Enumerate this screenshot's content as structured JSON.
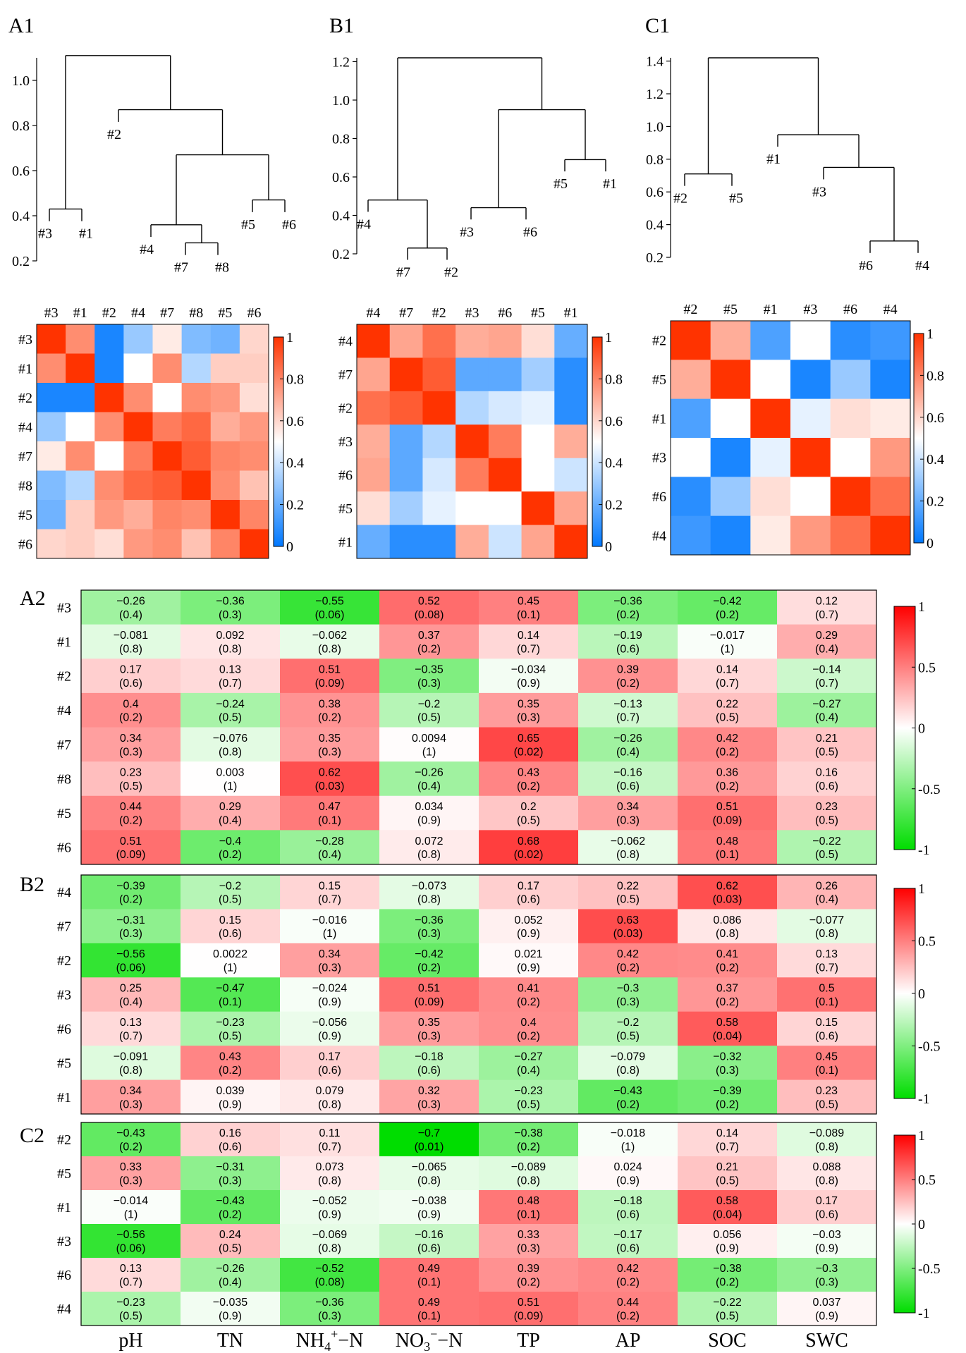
{
  "dendrograms": [
    {
      "panel": "A1",
      "yticks": [
        "0.2",
        "0.4",
        "0.6",
        "0.8",
        "1.0"
      ],
      "ytick_values": [
        0.2,
        0.4,
        0.6,
        0.8,
        1.0
      ],
      "ylim": [
        0.2,
        1.1
      ],
      "order": [
        "#3",
        "#1",
        "#2",
        "#4",
        "#7",
        "#8",
        "#5",
        "#6"
      ],
      "merges": [
        {
          "a": "#7",
          "b": "#8",
          "h": 0.28
        },
        {
          "a": "#3",
          "b": "#1",
          "h": 0.43
        },
        {
          "a": "#5",
          "b": "#6",
          "h": 0.47
        },
        {
          "a": "#4",
          "b": "#7+#8",
          "h": 0.36
        },
        {
          "a": "#4+#7+#8",
          "b": "#5+#6",
          "h": 0.67
        },
        {
          "a": "#2",
          "b": "rest",
          "h": 0.87
        },
        {
          "a": "#3+#1",
          "b": "#2+rest",
          "h": 1.11
        }
      ]
    },
    {
      "panel": "B1",
      "yticks": [
        "0.2",
        "0.4",
        "0.6",
        "0.8",
        "1.0",
        "1.2"
      ],
      "ytick_values": [
        0.2,
        0.4,
        0.6,
        0.8,
        1.0,
        1.2
      ],
      "ylim": [
        0.2,
        1.22
      ],
      "order": [
        "#4",
        "#7",
        "#2",
        "#3",
        "#6",
        "#5",
        "#1"
      ],
      "merges": [
        {
          "a": "#7",
          "b": "#2",
          "h": 0.23
        },
        {
          "a": "#3",
          "b": "#6",
          "h": 0.44
        },
        {
          "a": "#4",
          "b": "#7+#2",
          "h": 0.48
        },
        {
          "a": "#5",
          "b": "#1",
          "h": 0.69
        },
        {
          "a": "#3+#6",
          "b": "#5+#1",
          "h": 0.95
        },
        {
          "a": "#4+#7+#2",
          "b": "rest",
          "h": 1.22
        }
      ]
    },
    {
      "panel": "C1",
      "yticks": [
        "0.2",
        "0.4",
        "0.6",
        "0.8",
        "1.0",
        "1.2",
        "1.4"
      ],
      "ytick_values": [
        0.2,
        0.4,
        0.6,
        0.8,
        1.0,
        1.2,
        1.4
      ],
      "ylim": [
        0.2,
        1.42
      ],
      "order": [
        "#2",
        "#5",
        "#1",
        "#3",
        "#6",
        "#4"
      ],
      "merges": [
        {
          "a": "#6",
          "b": "#4",
          "h": 0.3
        },
        {
          "a": "#2",
          "b": "#5",
          "h": 0.71
        },
        {
          "a": "#3",
          "b": "#6+#4",
          "h": 0.75
        },
        {
          "a": "#1",
          "b": "#3+#6+#4",
          "h": 0.95
        },
        {
          "a": "#2+#5",
          "b": "rest",
          "h": 1.42
        }
      ]
    }
  ],
  "similarity_colorbar": {
    "ticks": [
      "0",
      "0.2",
      "0.4",
      "0.6",
      "0.8",
      "1"
    ],
    "tick_values": [
      0,
      0.2,
      0.4,
      0.6,
      0.8,
      1
    ],
    "colors": [
      "#0078ff",
      "#ffffff",
      "#ff3300"
    ]
  },
  "correlation_colorbar": {
    "ticks": [
      "-1",
      "-0.5",
      "0",
      "0.5",
      "1"
    ],
    "tick_values": [
      -1,
      -0.5,
      0,
      0.5,
      1
    ],
    "colors": [
      "#00dd00",
      "#ffffff",
      "#ff0000"
    ]
  },
  "chart_data": [
    {
      "type": "heatmap",
      "panel": "A1",
      "labels": [
        "#3",
        "#1",
        "#2",
        "#4",
        "#7",
        "#8",
        "#5",
        "#6"
      ],
      "matrix": [
        [
          1.0,
          0.78,
          0.05,
          0.3,
          0.55,
          0.25,
          0.22,
          0.6
        ],
        [
          0.78,
          1.0,
          0.05,
          0.5,
          0.78,
          0.35,
          0.62,
          0.62
        ],
        [
          0.05,
          0.05,
          1.0,
          0.78,
          0.5,
          0.78,
          0.75,
          0.58
        ],
        [
          0.3,
          0.5,
          0.78,
          1.0,
          0.82,
          0.87,
          0.7,
          0.75
        ],
        [
          0.55,
          0.78,
          0.5,
          0.82,
          1.0,
          0.9,
          0.8,
          0.78
        ],
        [
          0.25,
          0.35,
          0.78,
          0.87,
          0.9,
          1.0,
          0.78,
          0.65
        ],
        [
          0.22,
          0.62,
          0.75,
          0.7,
          0.8,
          0.78,
          1.0,
          0.8
        ],
        [
          0.6,
          0.62,
          0.58,
          0.75,
          0.78,
          0.65,
          0.8,
          1.0
        ]
      ]
    },
    {
      "type": "heatmap",
      "panel": "B1",
      "labels": [
        "#4",
        "#7",
        "#2",
        "#3",
        "#6",
        "#5",
        "#1"
      ],
      "matrix": [
        [
          1.0,
          0.72,
          0.85,
          0.7,
          0.72,
          0.58,
          0.2
        ],
        [
          0.72,
          1.0,
          0.9,
          0.18,
          0.18,
          0.32,
          0.08
        ],
        [
          0.85,
          0.9,
          1.0,
          0.35,
          0.42,
          0.45,
          0.08
        ],
        [
          0.7,
          0.18,
          0.35,
          1.0,
          0.82,
          0.5,
          0.7
        ],
        [
          0.72,
          0.18,
          0.42,
          0.82,
          1.0,
          0.5,
          0.4
        ],
        [
          0.58,
          0.32,
          0.45,
          0.5,
          0.5,
          1.0,
          0.72
        ],
        [
          0.2,
          0.08,
          0.08,
          0.7,
          0.4,
          0.72,
          1.0
        ]
      ]
    },
    {
      "type": "heatmap",
      "panel": "C1",
      "labels": [
        "#2",
        "#5",
        "#1",
        "#3",
        "#6",
        "#4"
      ],
      "matrix": [
        [
          1.0,
          0.7,
          0.15,
          0.5,
          0.08,
          0.12
        ],
        [
          0.7,
          1.0,
          0.5,
          0.05,
          0.3,
          0.05
        ],
        [
          0.15,
          0.5,
          1.0,
          0.45,
          0.58,
          0.55
        ],
        [
          0.5,
          0.05,
          0.45,
          1.0,
          0.5,
          0.75
        ],
        [
          0.08,
          0.3,
          0.58,
          0.5,
          1.0,
          0.85
        ],
        [
          0.12,
          0.05,
          0.55,
          0.75,
          0.85,
          1.0
        ]
      ]
    },
    {
      "type": "heatmap",
      "panel": "A2",
      "rows": [
        "#3",
        "#1",
        "#2",
        "#4",
        "#7",
        "#8",
        "#5",
        "#6"
      ],
      "columns": [
        "pH",
        "TN",
        "NH4+-N",
        "NO3--N",
        "TP",
        "AP",
        "SOC",
        "SWC"
      ],
      "r": [
        [
          -0.26,
          -0.36,
          -0.55,
          0.52,
          0.45,
          -0.36,
          -0.42,
          0.12
        ],
        [
          -0.081,
          0.092,
          -0.062,
          0.37,
          0.14,
          -0.19,
          -0.017,
          0.29
        ],
        [
          0.17,
          0.13,
          0.51,
          -0.35,
          -0.034,
          0.39,
          0.14,
          -0.14
        ],
        [
          0.4,
          -0.24,
          0.38,
          -0.2,
          0.35,
          -0.13,
          0.22,
          -0.27
        ],
        [
          0.34,
          -0.076,
          0.35,
          0.0094,
          0.65,
          -0.26,
          0.42,
          0.21
        ],
        [
          0.23,
          0.003,
          0.62,
          -0.26,
          0.43,
          -0.16,
          0.36,
          0.16
        ],
        [
          0.44,
          0.29,
          0.47,
          0.034,
          0.2,
          0.34,
          0.51,
          0.23
        ],
        [
          0.51,
          -0.4,
          -0.28,
          0.072,
          0.68,
          -0.062,
          0.48,
          -0.22
        ]
      ],
      "r_text": [
        [
          "−0.26",
          "−0.36",
          "−0.55",
          "0.52",
          "0.45",
          "−0.36",
          "−0.42",
          "0.12"
        ],
        [
          "−0.081",
          "0.092",
          "−0.062",
          "0.37",
          "0.14",
          "−0.19",
          "−0.017",
          "0.29"
        ],
        [
          "0.17",
          "0.13",
          "0.51",
          "−0.35",
          "−0.034",
          "0.39",
          "0.14",
          "−0.14"
        ],
        [
          "0.4",
          "−0.24",
          "0.38",
          "−0.2",
          "0.35",
          "−0.13",
          "0.22",
          "−0.27"
        ],
        [
          "0.34",
          "−0.076",
          "0.35",
          "0.0094",
          "0.65",
          "−0.26",
          "0.42",
          "0.21"
        ],
        [
          "0.23",
          "0.003",
          "0.62",
          "−0.26",
          "0.43",
          "−0.16",
          "0.36",
          "0.16"
        ],
        [
          "0.44",
          "0.29",
          "0.47",
          "0.034",
          "0.2",
          "0.34",
          "0.51",
          "0.23"
        ],
        [
          "0.51",
          "−0.4",
          "−0.28",
          "0.072",
          "0.68",
          "−0.062",
          "0.48",
          "−0.22"
        ]
      ],
      "p_text": [
        [
          "(0.4)",
          "(0.3)",
          "(0.06)",
          "(0.08)",
          "(0.1)",
          "(0.2)",
          "(0.2)",
          "(0.7)"
        ],
        [
          "(0.8)",
          "(0.8)",
          "(0.8)",
          "(0.2)",
          "(0.7)",
          "(0.6)",
          "(1)",
          "(0.4)"
        ],
        [
          "(0.6)",
          "(0.7)",
          "(0.09)",
          "(0.3)",
          "(0.9)",
          "(0.2)",
          "(0.7)",
          "(0.7)"
        ],
        [
          "(0.2)",
          "(0.5)",
          "(0.2)",
          "(0.5)",
          "(0.3)",
          "(0.7)",
          "(0.5)",
          "(0.4)"
        ],
        [
          "(0.3)",
          "(0.8)",
          "(0.3)",
          "(1)",
          "(0.02)",
          "(0.4)",
          "(0.2)",
          "(0.5)"
        ],
        [
          "(0.5)",
          "(1)",
          "(0.03)",
          "(0.4)",
          "(0.2)",
          "(0.6)",
          "(0.2)",
          "(0.6)"
        ],
        [
          "(0.2)",
          "(0.4)",
          "(0.1)",
          "(0.9)",
          "(0.5)",
          "(0.3)",
          "(0.09)",
          "(0.5)"
        ],
        [
          "(0.09)",
          "(0.2)",
          "(0.4)",
          "(0.8)",
          "(0.02)",
          "(0.8)",
          "(0.1)",
          "(0.5)"
        ]
      ]
    },
    {
      "type": "heatmap",
      "panel": "B2",
      "rows": [
        "#4",
        "#7",
        "#2",
        "#3",
        "#6",
        "#5",
        "#1"
      ],
      "columns": [
        "pH",
        "TN",
        "NH4+-N",
        "NO3--N",
        "TP",
        "AP",
        "SOC",
        "SWC"
      ],
      "r": [
        [
          -0.39,
          -0.2,
          0.15,
          -0.073,
          0.17,
          0.22,
          0.62,
          0.26
        ],
        [
          -0.31,
          0.15,
          -0.016,
          -0.36,
          0.052,
          0.63,
          0.086,
          -0.077
        ],
        [
          -0.56,
          0.0022,
          0.34,
          -0.42,
          0.021,
          0.42,
          0.41,
          0.13
        ],
        [
          0.25,
          -0.47,
          -0.024,
          0.51,
          0.41,
          -0.3,
          0.37,
          0.5
        ],
        [
          0.13,
          -0.23,
          -0.056,
          0.35,
          0.4,
          -0.2,
          0.58,
          0.15
        ],
        [
          -0.091,
          0.43,
          0.17,
          -0.18,
          -0.27,
          -0.079,
          -0.32,
          0.45
        ],
        [
          0.34,
          0.039,
          0.079,
          0.32,
          -0.23,
          -0.43,
          -0.39,
          0.23
        ]
      ],
      "r_text": [
        [
          "−0.39",
          "−0.2",
          "0.15",
          "−0.073",
          "0.17",
          "0.22",
          "0.62",
          "0.26"
        ],
        [
          "−0.31",
          "0.15",
          "−0.016",
          "−0.36",
          "0.052",
          "0.63",
          "0.086",
          "−0.077"
        ],
        [
          "−0.56",
          "0.0022",
          "0.34",
          "−0.42",
          "0.021",
          "0.42",
          "0.41",
          "0.13"
        ],
        [
          "0.25",
          "−0.47",
          "−0.024",
          "0.51",
          "0.41",
          "−0.3",
          "0.37",
          "0.5"
        ],
        [
          "0.13",
          "−0.23",
          "−0.056",
          "0.35",
          "0.4",
          "−0.2",
          "0.58",
          "0.15"
        ],
        [
          "−0.091",
          "0.43",
          "0.17",
          "−0.18",
          "−0.27",
          "−0.079",
          "−0.32",
          "0.45"
        ],
        [
          "0.34",
          "0.039",
          "0.079",
          "0.32",
          "−0.23",
          "−0.43",
          "−0.39",
          "0.23"
        ]
      ],
      "p_text": [
        [
          "(0.2)",
          "(0.5)",
          "(0.7)",
          "(0.8)",
          "(0.6)",
          "(0.5)",
          "(0.03)",
          "(0.4)"
        ],
        [
          "(0.3)",
          "(0.6)",
          "(1)",
          "(0.3)",
          "(0.9)",
          "(0.03)",
          "(0.8)",
          "(0.8)"
        ],
        [
          "(0.06)",
          "(1)",
          "(0.3)",
          "(0.2)",
          "(0.9)",
          "(0.2)",
          "(0.2)",
          "(0.7)"
        ],
        [
          "(0.4)",
          "(0.1)",
          "(0.9)",
          "(0.09)",
          "(0.2)",
          "(0.3)",
          "(0.2)",
          "(0.1)"
        ],
        [
          "(0.7)",
          "(0.5)",
          "(0.9)",
          "(0.3)",
          "(0.2)",
          "(0.5)",
          "(0.04)",
          "(0.6)"
        ],
        [
          "(0.8)",
          "(0.2)",
          "(0.6)",
          "(0.6)",
          "(0.4)",
          "(0.8)",
          "(0.3)",
          "(0.1)"
        ],
        [
          "(0.3)",
          "(0.9)",
          "(0.8)",
          "(0.3)",
          "(0.5)",
          "(0.2)",
          "(0.2)",
          "(0.5)"
        ]
      ]
    },
    {
      "type": "heatmap",
      "panel": "C2",
      "rows": [
        "#2",
        "#5",
        "#1",
        "#3",
        "#6",
        "#4"
      ],
      "columns": [
        "pH",
        "TN",
        "NH4+-N",
        "NO3--N",
        "TP",
        "AP",
        "SOC",
        "SWC"
      ],
      "r": [
        [
          -0.43,
          0.16,
          0.11,
          -0.7,
          -0.38,
          -0.018,
          0.14,
          -0.089
        ],
        [
          0.33,
          -0.31,
          0.073,
          -0.065,
          -0.089,
          0.024,
          0.21,
          0.088
        ],
        [
          -0.014,
          -0.43,
          -0.052,
          -0.038,
          0.48,
          -0.18,
          0.58,
          0.17
        ],
        [
          -0.56,
          0.24,
          -0.069,
          -0.16,
          0.33,
          -0.17,
          0.056,
          -0.03
        ],
        [
          0.13,
          -0.26,
          -0.52,
          0.49,
          0.39,
          0.42,
          -0.38,
          -0.3
        ],
        [
          -0.23,
          -0.035,
          -0.36,
          0.49,
          0.51,
          0.44,
          -0.22,
          0.037
        ]
      ],
      "r_text": [
        [
          "−0.43",
          "0.16",
          "0.11",
          "−0.7",
          "−0.38",
          "−0.018",
          "0.14",
          "−0.089"
        ],
        [
          "0.33",
          "−0.31",
          "0.073",
          "−0.065",
          "−0.089",
          "0.024",
          "0.21",
          "0.088"
        ],
        [
          "−0.014",
          "−0.43",
          "−0.052",
          "−0.038",
          "0.48",
          "−0.18",
          "0.58",
          "0.17"
        ],
        [
          "−0.56",
          "0.24",
          "−0.069",
          "−0.16",
          "0.33",
          "−0.17",
          "0.056",
          "−0.03"
        ],
        [
          "0.13",
          "−0.26",
          "−0.52",
          "0.49",
          "0.39",
          "0.42",
          "−0.38",
          "−0.3"
        ],
        [
          "−0.23",
          "−0.035",
          "−0.36",
          "0.49",
          "0.51",
          "0.44",
          "−0.22",
          "0.037"
        ]
      ],
      "p_text": [
        [
          "(0.2)",
          "(0.6)",
          "(0.7)",
          "(0.01)",
          "(0.2)",
          "(1)",
          "(0.7)",
          "(0.8)"
        ],
        [
          "(0.3)",
          "(0.3)",
          "(0.8)",
          "(0.8)",
          "(0.8)",
          "(0.9)",
          "(0.5)",
          "(0.8)"
        ],
        [
          "(1)",
          "(0.2)",
          "(0.9)",
          "(0.9)",
          "(0.1)",
          "(0.6)",
          "(0.04)",
          "(0.6)"
        ],
        [
          "(0.06)",
          "(0.5)",
          "(0.8)",
          "(0.6)",
          "(0.3)",
          "(0.6)",
          "(0.9)",
          "(0.9)"
        ],
        [
          "(0.7)",
          "(0.4)",
          "(0.08)",
          "(0.1)",
          "(0.2)",
          "(0.2)",
          "(0.2)",
          "(0.3)"
        ],
        [
          "(0.5)",
          "(0.9)",
          "(0.3)",
          "(0.1)",
          "(0.09)",
          "(0.2)",
          "(0.5)",
          "(0.9)"
        ]
      ]
    }
  ],
  "column_labels": [
    {
      "base": "pH",
      "sup": "",
      "sub": "",
      "tail": ""
    },
    {
      "base": "TN",
      "sup": "",
      "sub": "",
      "tail": ""
    },
    {
      "base": "NH",
      "sub": "4",
      "sup": "+",
      "tail": "−N"
    },
    {
      "base": "NO",
      "sub": "3",
      "sup": "−",
      "tail": "−N"
    },
    {
      "base": "TP",
      "sup": "",
      "sub": "",
      "tail": ""
    },
    {
      "base": "AP",
      "sup": "",
      "sub": "",
      "tail": ""
    },
    {
      "base": "SOC",
      "sup": "",
      "sub": "",
      "tail": ""
    },
    {
      "base": "SWC",
      "sup": "",
      "sub": "",
      "tail": ""
    }
  ]
}
